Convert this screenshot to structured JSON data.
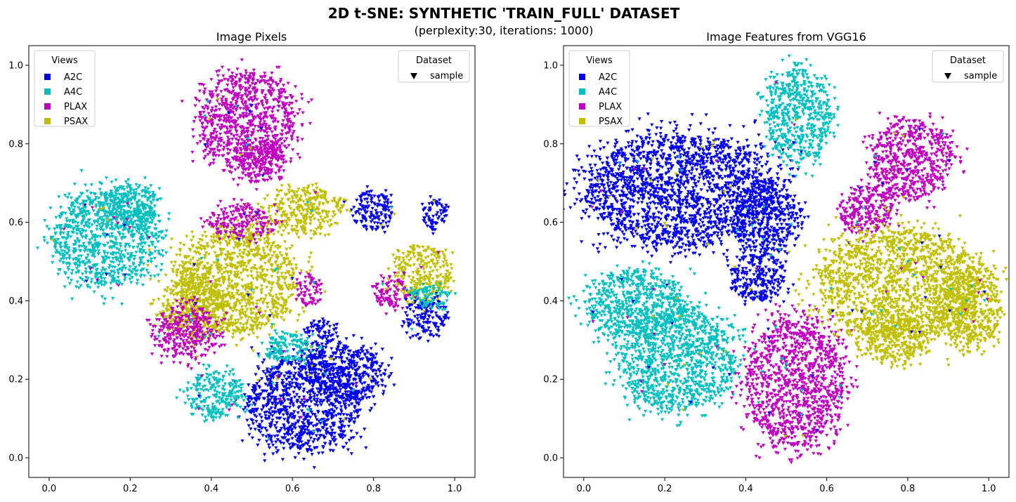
{
  "figure": {
    "title": "2D t-SNE: SYNTHETIC 'TRAIN_FULL' DATASET",
    "subtitle": "(perplexity:30, iterations: 1000)"
  },
  "view_colors": {
    "A2C": "#0000ee",
    "A4C": "#00bfbf",
    "PLAX": "#bf00bf",
    "PSAX": "#bfbf00"
  },
  "chart_data": [
    {
      "type": "scatter",
      "title": "Image Pixels",
      "xlim": [
        -0.05,
        1.05
      ],
      "ylim": [
        -0.05,
        1.05
      ],
      "xticks": [
        "0.0",
        "0.2",
        "0.4",
        "0.6",
        "0.8",
        "1.0"
      ],
      "yticks": [
        "0.0",
        "0.2",
        "0.4",
        "0.6",
        "0.8",
        "1.0"
      ],
      "marker": "triangle-down",
      "legend_views": {
        "title": "Views",
        "placement": "upper-left",
        "entries": [
          "A2C",
          "A4C",
          "PLAX",
          "PSAX"
        ]
      },
      "legend_dataset": {
        "title": "Dataset",
        "placement": "upper-right",
        "entries": [
          "sample"
        ]
      },
      "clusters": [
        {
          "view": "A4C",
          "cx": 0.14,
          "cy": 0.56,
          "rx": 0.13,
          "ry": 0.12
        },
        {
          "view": "A4C",
          "cx": 0.2,
          "cy": 0.64,
          "rx": 0.07,
          "ry": 0.06
        },
        {
          "view": "PLAX",
          "cx": 0.49,
          "cy": 0.86,
          "rx": 0.12,
          "ry": 0.12
        },
        {
          "view": "PLAX",
          "cx": 0.52,
          "cy": 0.76,
          "rx": 0.06,
          "ry": 0.06
        },
        {
          "view": "PSAX",
          "cx": 0.46,
          "cy": 0.45,
          "rx": 0.15,
          "ry": 0.13
        },
        {
          "view": "PSAX",
          "cx": 0.36,
          "cy": 0.38,
          "rx": 0.08,
          "ry": 0.08
        },
        {
          "view": "PSAX",
          "cx": 0.63,
          "cy": 0.63,
          "rx": 0.09,
          "ry": 0.06
        },
        {
          "view": "PSAX",
          "cx": 0.92,
          "cy": 0.47,
          "rx": 0.07,
          "ry": 0.07
        },
        {
          "view": "PLAX",
          "cx": 0.34,
          "cy": 0.32,
          "rx": 0.08,
          "ry": 0.07
        },
        {
          "view": "PLAX",
          "cx": 0.47,
          "cy": 0.6,
          "rx": 0.08,
          "ry": 0.04
        },
        {
          "view": "PLAX",
          "cx": 0.64,
          "cy": 0.43,
          "rx": 0.03,
          "ry": 0.04
        },
        {
          "view": "PLAX",
          "cx": 0.84,
          "cy": 0.42,
          "rx": 0.04,
          "ry": 0.04
        },
        {
          "view": "A2C",
          "cx": 0.63,
          "cy": 0.14,
          "rx": 0.14,
          "ry": 0.12
        },
        {
          "view": "A2C",
          "cx": 0.72,
          "cy": 0.22,
          "rx": 0.1,
          "ry": 0.07
        },
        {
          "view": "A2C",
          "cx": 0.67,
          "cy": 0.32,
          "rx": 0.04,
          "ry": 0.03
        },
        {
          "view": "A2C",
          "cx": 0.8,
          "cy": 0.63,
          "rx": 0.05,
          "ry": 0.05
        },
        {
          "view": "A2C",
          "cx": 0.93,
          "cy": 0.36,
          "rx": 0.05,
          "ry": 0.05
        },
        {
          "view": "A2C",
          "cx": 0.95,
          "cy": 0.62,
          "rx": 0.03,
          "ry": 0.04
        },
        {
          "view": "A4C",
          "cx": 0.41,
          "cy": 0.16,
          "rx": 0.07,
          "ry": 0.06
        },
        {
          "view": "A4C",
          "cx": 0.59,
          "cy": 0.28,
          "rx": 0.06,
          "ry": 0.04
        },
        {
          "view": "A4C",
          "cx": 0.94,
          "cy": 0.41,
          "rx": 0.05,
          "ry": 0.03
        }
      ]
    },
    {
      "type": "scatter",
      "title": "Image Features from VGG16",
      "xlim": [
        -0.05,
        1.05
      ],
      "ylim": [
        -0.05,
        1.05
      ],
      "xticks": [
        "0.0",
        "0.2",
        "0.4",
        "0.6",
        "0.8",
        "1.0"
      ],
      "yticks": [
        "0.0",
        "0.2",
        "0.4",
        "0.6",
        "0.8",
        "1.0"
      ],
      "marker": "triangle-down",
      "legend_views": {
        "title": "Views",
        "placement": "upper-left",
        "entries": [
          "A2C",
          "A4C",
          "PLAX",
          "PSAX"
        ]
      },
      "legend_dataset": {
        "title": "Dataset",
        "placement": "upper-right",
        "entries": [
          "sample"
        ]
      },
      "clusters": [
        {
          "view": "A2C",
          "cx": 0.24,
          "cy": 0.68,
          "rx": 0.23,
          "ry": 0.14
        },
        {
          "view": "A2C",
          "cx": 0.45,
          "cy": 0.61,
          "rx": 0.08,
          "ry": 0.09
        },
        {
          "view": "A2C",
          "cx": 0.43,
          "cy": 0.46,
          "rx": 0.07,
          "ry": 0.06
        },
        {
          "view": "A4C",
          "cx": 0.53,
          "cy": 0.87,
          "rx": 0.08,
          "ry": 0.12
        },
        {
          "view": "A4C",
          "cx": 0.13,
          "cy": 0.39,
          "rx": 0.12,
          "ry": 0.09
        },
        {
          "view": "A4C",
          "cx": 0.23,
          "cy": 0.25,
          "rx": 0.14,
          "ry": 0.13
        },
        {
          "view": "PLAX",
          "cx": 0.52,
          "cy": 0.19,
          "rx": 0.12,
          "ry": 0.16
        },
        {
          "view": "PLAX",
          "cx": 0.81,
          "cy": 0.76,
          "rx": 0.1,
          "ry": 0.1
        },
        {
          "view": "PLAX",
          "cx": 0.7,
          "cy": 0.63,
          "rx": 0.07,
          "ry": 0.06
        },
        {
          "view": "PSAX",
          "cx": 0.78,
          "cy": 0.44,
          "rx": 0.2,
          "ry": 0.14
        },
        {
          "view": "PSAX",
          "cx": 0.95,
          "cy": 0.38,
          "rx": 0.08,
          "ry": 0.1
        },
        {
          "view": "PSAX",
          "cx": 0.77,
          "cy": 0.3,
          "rx": 0.08,
          "ry": 0.06
        }
      ]
    }
  ]
}
